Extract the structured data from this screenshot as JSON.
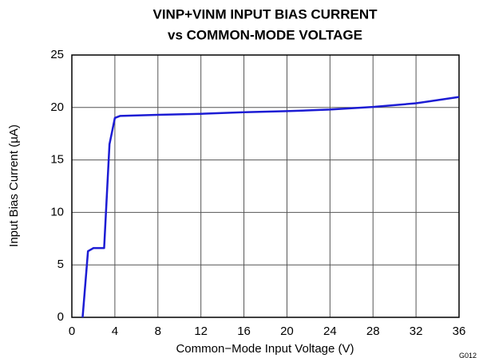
{
  "chart_data": {
    "type": "line",
    "title": [
      "VINP+VINM INPUT BIAS CURRENT",
      "vs COMMON-MODE VOLTAGE"
    ],
    "xlabel": "Common−Mode Input Voltage (V)",
    "ylabel": "Input Bias Current (µA)",
    "annotation": "G012",
    "x": [
      1,
      1.5,
      2,
      3,
      3.5,
      4,
      4.5,
      8,
      12,
      16,
      20,
      24,
      28,
      32,
      36
    ],
    "series": [
      {
        "name": "Input Bias Current",
        "color": "#1c1cd4",
        "values": [
          0,
          6.3,
          6.6,
          6.6,
          16.5,
          19.0,
          19.2,
          19.3,
          19.4,
          19.55,
          19.65,
          19.8,
          20.05,
          20.4,
          21.0
        ]
      }
    ],
    "xlim": [
      0,
      36
    ],
    "xticks": [
      0,
      4,
      8,
      12,
      16,
      20,
      24,
      28,
      32,
      36
    ],
    "ylim": [
      0,
      25
    ],
    "yticks": [
      0,
      5,
      10,
      15,
      20,
      25
    ],
    "grid": true
  }
}
